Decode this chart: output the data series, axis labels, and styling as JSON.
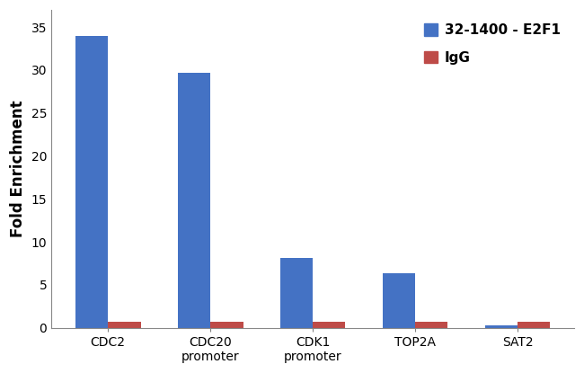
{
  "categories": [
    "CDC2",
    "CDC20\npromoter",
    "CDK1\npromoter",
    "TOP2A",
    "SAT2"
  ],
  "e2f1_values": [
    34.0,
    29.7,
    8.1,
    6.4,
    0.3
  ],
  "igg_values": [
    0.7,
    0.7,
    0.7,
    0.7,
    0.7
  ],
  "e2f1_color": "#4472C4",
  "igg_color": "#BE4B48",
  "ylabel": "Fold Enrichment",
  "ylim": [
    0,
    37
  ],
  "yticks": [
    0,
    5,
    10,
    15,
    20,
    25,
    30,
    35
  ],
  "legend_e2f1": "32-1400 - E2F1",
  "legend_igg": "IgG",
  "bar_width": 0.32,
  "background_color": "#FFFFFF",
  "label_fontsize": 12,
  "tick_fontsize": 10,
  "legend_fontsize": 11
}
